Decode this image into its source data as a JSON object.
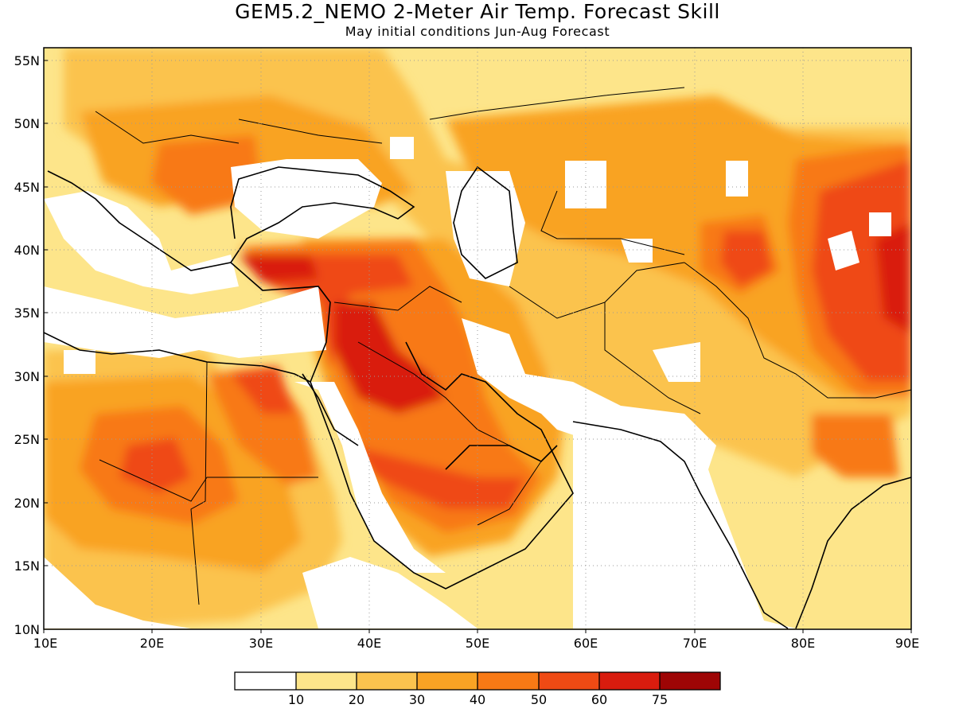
{
  "header": {
    "title": "GEM5.2_NEMO 2-Meter Air Temp. Forecast Skill",
    "subtitle": "May initial conditions  Jun-Aug Forecast"
  },
  "map": {
    "lon_range": [
      10,
      90
    ],
    "lat_range": [
      10,
      56
    ],
    "lat_ticks": [
      {
        "value": 10,
        "label": "10N"
      },
      {
        "value": 15,
        "label": "15N"
      },
      {
        "value": 20,
        "label": "20N"
      },
      {
        "value": 25,
        "label": "25N"
      },
      {
        "value": 30,
        "label": "30N"
      },
      {
        "value": 35,
        "label": "35N"
      },
      {
        "value": 40,
        "label": "40N"
      },
      {
        "value": 45,
        "label": "45N"
      },
      {
        "value": 50,
        "label": "50N"
      },
      {
        "value": 55,
        "label": "55N"
      }
    ],
    "lon_ticks": [
      {
        "value": 10,
        "label": "10E"
      },
      {
        "value": 20,
        "label": "20E"
      },
      {
        "value": 30,
        "label": "30E"
      },
      {
        "value": 40,
        "label": "40E"
      },
      {
        "value": 50,
        "label": "50E"
      },
      {
        "value": 60,
        "label": "60E"
      },
      {
        "value": 70,
        "label": "70E"
      },
      {
        "value": 80,
        "label": "80E"
      },
      {
        "value": 90,
        "label": "90E"
      }
    ],
    "gridlines": "dotted"
  },
  "legend": {
    "colors": [
      "#ffffff",
      "#fde58a",
      "#fbc34e",
      "#f9a324",
      "#f87915",
      "#ef4a14",
      "#d91c0e",
      "#9e0505"
    ],
    "labels": [
      "10",
      "20",
      "30",
      "40",
      "50",
      "60",
      "75"
    ]
  }
}
